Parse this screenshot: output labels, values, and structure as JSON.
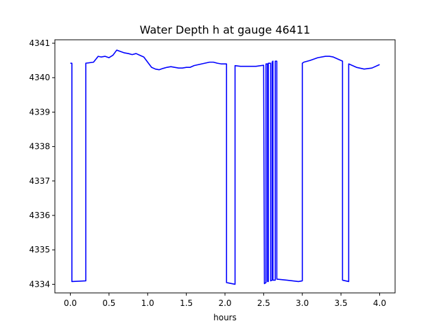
{
  "chart_data": {
    "type": "line",
    "title": "Water Depth h at gauge 46411",
    "xlabel": "hours",
    "ylabel": "",
    "xlim": [
      -0.2,
      4.2
    ],
    "ylim": [
      4333.75,
      4341.1
    ],
    "xticks": [
      0.0,
      0.5,
      1.0,
      1.5,
      2.0,
      2.5,
      3.0,
      3.5,
      4.0
    ],
    "xtick_labels": [
      "0.0",
      "0.5",
      "1.0",
      "1.5",
      "2.0",
      "2.5",
      "3.0",
      "3.5",
      "4.0"
    ],
    "yticks": [
      4334,
      4335,
      4336,
      4337,
      4338,
      4339,
      4340,
      4341
    ],
    "ytick_labels": [
      "4334",
      "4335",
      "4336",
      "4337",
      "4338",
      "4339",
      "4340",
      "4341"
    ],
    "grid": false,
    "series": [
      {
        "color": "#0000ff",
        "x": [
          0.0,
          0.02,
          0.02,
          0.2,
          0.2,
          0.3,
          0.36,
          0.4,
          0.45,
          0.5,
          0.55,
          0.6,
          0.65,
          0.7,
          0.75,
          0.8,
          0.85,
          0.9,
          0.95,
          1.0,
          1.05,
          1.1,
          1.15,
          1.2,
          1.25,
          1.3,
          1.35,
          1.4,
          1.45,
          1.5,
          1.55,
          1.6,
          1.7,
          1.8,
          1.85,
          1.9,
          1.95,
          2.0,
          2.02,
          2.02,
          2.13,
          2.13,
          2.2,
          2.3,
          2.4,
          2.5,
          2.5,
          2.51,
          2.51,
          2.53,
          2.53,
          2.55,
          2.55,
          2.56,
          2.56,
          2.59,
          2.59,
          2.61,
          2.61,
          2.62,
          2.62,
          2.65,
          2.65,
          2.67,
          2.67,
          2.8,
          2.95,
          3.0,
          3.0,
          3.02,
          3.1,
          3.2,
          3.3,
          3.35,
          3.4,
          3.5,
          3.52,
          3.52,
          3.6,
          3.6,
          3.7,
          3.8,
          3.9,
          4.0
        ],
        "y": [
          4340.42,
          4340.42,
          4334.08,
          4334.1,
          4340.42,
          4340.45,
          4340.62,
          4340.6,
          4340.62,
          4340.58,
          4340.65,
          4340.8,
          4340.76,
          4340.72,
          4340.7,
          4340.67,
          4340.7,
          4340.65,
          4340.6,
          4340.45,
          4340.3,
          4340.25,
          4340.23,
          4340.27,
          4340.3,
          4340.32,
          4340.3,
          4340.28,
          4340.28,
          4340.3,
          4340.3,
          4340.35,
          4340.4,
          4340.45,
          4340.45,
          4340.42,
          4340.4,
          4340.4,
          4340.4,
          4334.05,
          4334.0,
          4340.35,
          4340.33,
          4340.33,
          4340.33,
          4340.36,
          4340.36,
          4334.02,
          4334.02,
          4334.05,
          4340.4,
          4340.4,
          4334.08,
          4334.08,
          4340.42,
          4340.42,
          4334.1,
          4334.12,
          4340.45,
          4340.48,
          4334.12,
          4334.12,
          4340.48,
          4340.48,
          4334.15,
          4334.12,
          4334.08,
          4334.1,
          4340.42,
          4340.45,
          4340.5,
          4340.58,
          4340.62,
          4340.62,
          4340.6,
          4340.5,
          4340.48,
          4334.12,
          4334.08,
          4340.4,
          4340.3,
          4340.25,
          4340.28,
          4340.38
        ]
      }
    ]
  }
}
